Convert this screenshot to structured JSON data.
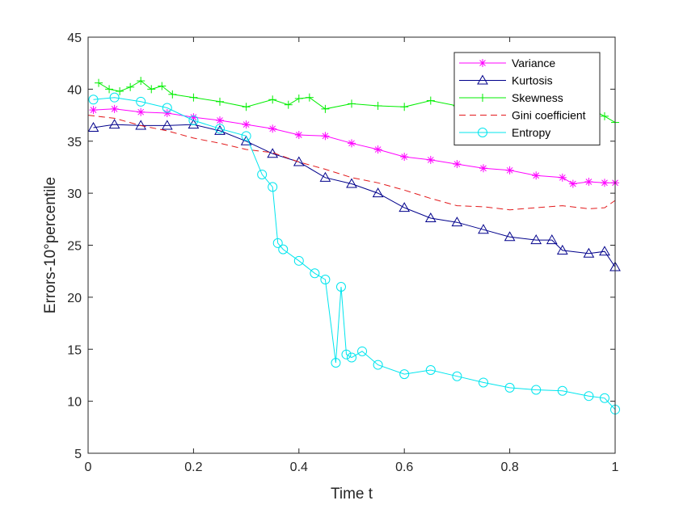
{
  "chart_data": {
    "type": "line",
    "title": "",
    "xlabel": "Time t",
    "ylabel": "Errors-10°percentile",
    "xlim": [
      0,
      1
    ],
    "ylim": [
      5,
      45
    ],
    "xticks": [
      0,
      0.2,
      0.4,
      0.6,
      0.8,
      1
    ],
    "xtick_labels": [
      "0",
      "0.2",
      "0.4",
      "0.6",
      "0.8",
      "1"
    ],
    "yticks": [
      5,
      10,
      15,
      20,
      25,
      30,
      35,
      40,
      45
    ],
    "ytick_labels": [
      "5",
      "10",
      "15",
      "20",
      "25",
      "30",
      "35",
      "40",
      "45"
    ],
    "grid": false,
    "legend_position": "top-right",
    "series": [
      {
        "name": "Variance",
        "color": "#ff00ff",
        "marker": "asterisk",
        "line": "solid",
        "x": [
          0.01,
          0.05,
          0.1,
          0.15,
          0.2,
          0.25,
          0.3,
          0.35,
          0.4,
          0.45,
          0.5,
          0.55,
          0.6,
          0.65,
          0.7,
          0.75,
          0.8,
          0.85,
          0.9,
          0.92,
          0.95,
          0.98,
          1.0
        ],
        "y": [
          38.0,
          38.1,
          37.8,
          37.7,
          37.3,
          37.0,
          36.6,
          36.2,
          35.6,
          35.5,
          34.8,
          34.2,
          33.5,
          33.2,
          32.8,
          32.4,
          32.2,
          31.7,
          31.5,
          30.9,
          31.1,
          31.0,
          31.0
        ]
      },
      {
        "name": "Kurtosis",
        "color": "#00008b",
        "marker": "triangle",
        "line": "solid",
        "x": [
          0.01,
          0.05,
          0.1,
          0.15,
          0.2,
          0.25,
          0.3,
          0.35,
          0.4,
          0.45,
          0.5,
          0.55,
          0.6,
          0.65,
          0.7,
          0.75,
          0.8,
          0.85,
          0.88,
          0.9,
          0.95,
          0.98,
          1.0
        ],
        "y": [
          36.3,
          36.6,
          36.5,
          36.5,
          36.6,
          36.0,
          35.0,
          33.8,
          33.0,
          31.5,
          30.9,
          30.0,
          28.6,
          27.6,
          27.2,
          26.5,
          25.8,
          25.5,
          25.5,
          24.5,
          24.2,
          24.4,
          22.9
        ]
      },
      {
        "name": "Skewness",
        "color": "#00ee00",
        "marker": "plus",
        "line": "solid",
        "x": [
          0.02,
          0.04,
          0.06,
          0.08,
          0.1,
          0.12,
          0.14,
          0.16,
          0.2,
          0.25,
          0.3,
          0.35,
          0.38,
          0.4,
          0.42,
          0.45,
          0.5,
          0.55,
          0.6,
          0.65,
          0.7,
          0.75,
          0.8,
          0.85,
          0.9,
          0.95,
          0.98,
          1.0
        ],
        "y": [
          40.6,
          40.0,
          39.8,
          40.2,
          40.8,
          40.0,
          40.3,
          39.5,
          39.2,
          38.8,
          38.3,
          39.0,
          38.5,
          39.1,
          39.2,
          38.1,
          38.6,
          38.4,
          38.3,
          38.9,
          38.4,
          38.6,
          38.2,
          38.1,
          38.6,
          38.2,
          37.4,
          36.8
        ]
      },
      {
        "name": "Gini coefficient",
        "color": "#e31a1c",
        "marker": "none",
        "line": "dashed",
        "x": [
          0.0,
          0.05,
          0.1,
          0.15,
          0.2,
          0.25,
          0.3,
          0.35,
          0.4,
          0.45,
          0.5,
          0.55,
          0.6,
          0.65,
          0.7,
          0.75,
          0.8,
          0.85,
          0.9,
          0.95,
          0.98,
          1.0
        ],
        "y": [
          37.5,
          37.2,
          36.5,
          36.0,
          35.3,
          34.8,
          34.2,
          33.9,
          33.0,
          32.3,
          31.5,
          31.0,
          30.3,
          29.5,
          28.8,
          28.7,
          28.4,
          28.6,
          28.8,
          28.5,
          28.6,
          29.3
        ]
      },
      {
        "name": "Entropy",
        "color": "#00e5ee",
        "marker": "circle",
        "line": "solid",
        "x": [
          0.01,
          0.05,
          0.1,
          0.15,
          0.2,
          0.25,
          0.3,
          0.33,
          0.35,
          0.36,
          0.37,
          0.4,
          0.43,
          0.45,
          0.47,
          0.48,
          0.49,
          0.5,
          0.52,
          0.55,
          0.6,
          0.65,
          0.7,
          0.75,
          0.8,
          0.85,
          0.9,
          0.95,
          0.98,
          1.0
        ],
        "y": [
          39.0,
          39.2,
          38.8,
          38.2,
          37.0,
          36.2,
          35.5,
          31.8,
          30.6,
          25.2,
          24.6,
          23.5,
          22.3,
          21.7,
          13.7,
          21.0,
          14.5,
          14.2,
          14.8,
          13.5,
          12.6,
          13.0,
          12.4,
          11.8,
          11.3,
          11.1,
          11.0,
          10.5,
          10.3,
          9.2
        ]
      }
    ]
  }
}
